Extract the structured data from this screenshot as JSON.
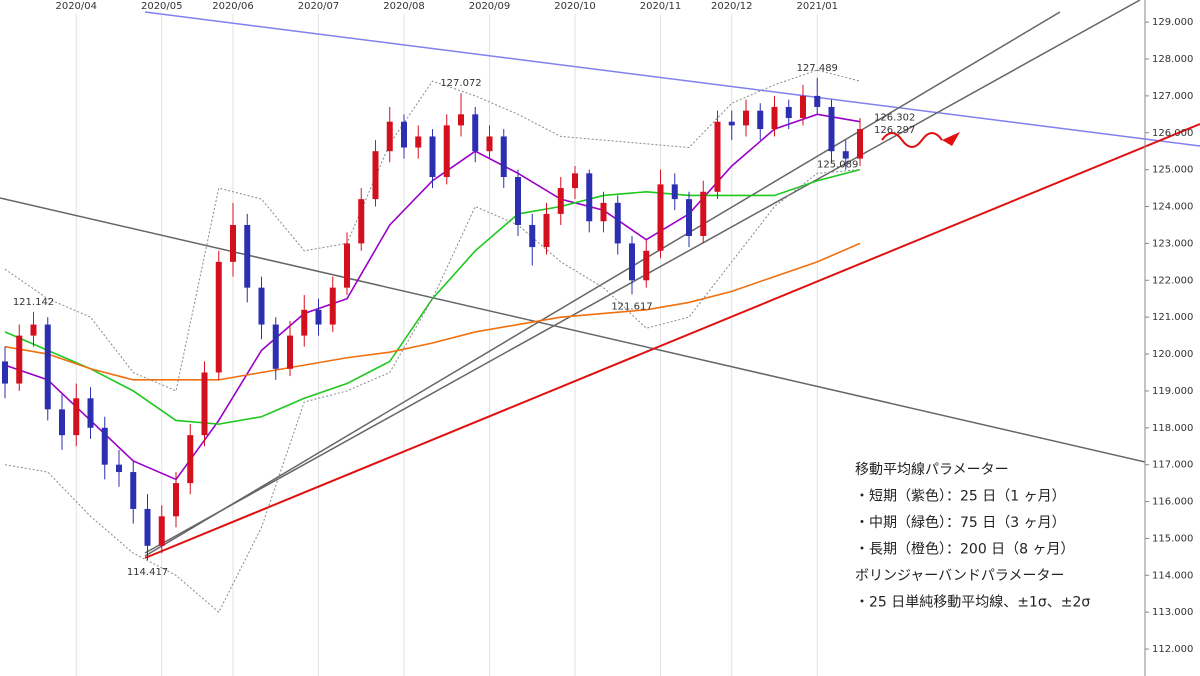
{
  "chart_data": {
    "type": "candlestick",
    "categories": [
      null,
      null,
      null,
      null,
      null,
      "2020/04",
      null,
      null,
      null,
      null,
      null,
      "2020/05",
      null,
      null,
      null,
      null,
      "2020/06",
      null,
      null,
      null,
      null,
      null,
      "2020/07",
      null,
      null,
      null,
      null,
      null,
      "2020/08",
      null,
      null,
      null,
      null,
      null,
      "2020/09",
      null,
      null,
      null,
      null,
      null,
      "2020/10",
      null,
      null,
      null,
      null,
      null,
      "2020/11",
      null,
      null,
      null,
      null,
      "2020/12",
      null,
      null,
      null,
      null,
      null,
      "2021/01",
      null,
      null,
      null
    ],
    "open": [
      119.8,
      119.2,
      120.5,
      120.8,
      118.5,
      117.8,
      118.8,
      118.0,
      117.0,
      116.8,
      115.8,
      114.8,
      115.6,
      116.5,
      117.8,
      119.5,
      122.5,
      123.5,
      121.8,
      120.8,
      119.6,
      120.5,
      121.2,
      120.8,
      121.8,
      123.0,
      124.2,
      125.5,
      126.3,
      125.6,
      125.9,
      124.8,
      126.2,
      126.5,
      125.5,
      125.9,
      124.8,
      123.5,
      122.9,
      123.8,
      124.5,
      124.9,
      123.6,
      124.1,
      123.0,
      122.0,
      122.8,
      124.6,
      124.2,
      123.2,
      124.4,
      126.3,
      126.2,
      126.6,
      126.1,
      126.7,
      126.4,
      127.0,
      126.7,
      125.5,
      125.3
    ],
    "high": [
      120.2,
      120.8,
      121.142,
      121.0,
      118.9,
      119.2,
      119.1,
      118.3,
      117.4,
      117.1,
      116.2,
      115.9,
      116.8,
      118.1,
      119.8,
      122.8,
      124.1,
      123.8,
      122.1,
      121.0,
      120.9,
      121.6,
      121.5,
      122.1,
      123.3,
      124.5,
      125.8,
      126.7,
      126.5,
      126.2,
      126.1,
      126.5,
      127.072,
      126.7,
      126.2,
      126.1,
      125.0,
      123.8,
      124.1,
      124.8,
      125.1,
      125.0,
      124.4,
      124.3,
      123.2,
      123.1,
      125.0,
      124.9,
      124.4,
      124.7,
      126.6,
      126.6,
      126.9,
      126.8,
      127.0,
      126.9,
      127.3,
      127.489,
      126.9,
      125.8,
      126.4
    ],
    "low": [
      118.8,
      119.0,
      120.2,
      118.2,
      117.4,
      117.5,
      117.7,
      116.6,
      116.4,
      115.4,
      114.417,
      114.6,
      115.3,
      116.2,
      117.5,
      119.3,
      122.1,
      121.4,
      120.4,
      119.3,
      119.4,
      120.2,
      120.5,
      120.6,
      121.6,
      122.8,
      124.0,
      125.2,
      125.3,
      125.3,
      124.5,
      124.6,
      125.9,
      125.2,
      125.3,
      124.5,
      123.2,
      122.4,
      122.7,
      123.5,
      124.2,
      123.3,
      123.3,
      122.7,
      121.617,
      121.8,
      122.6,
      123.9,
      122.9,
      123.0,
      124.2,
      125.8,
      125.9,
      125.8,
      125.9,
      126.1,
      126.2,
      126.5,
      125.2,
      125.0,
      125.1
    ],
    "close": [
      119.2,
      120.5,
      120.8,
      118.5,
      117.8,
      118.8,
      118.0,
      117.0,
      116.8,
      115.8,
      114.8,
      115.6,
      116.5,
      117.8,
      119.5,
      122.5,
      123.5,
      121.8,
      120.8,
      119.6,
      120.5,
      121.2,
      120.8,
      121.8,
      123.0,
      124.2,
      125.5,
      126.3,
      125.6,
      125.9,
      124.8,
      126.2,
      126.5,
      125.5,
      125.9,
      124.8,
      123.5,
      122.9,
      123.8,
      124.5,
      124.9,
      123.6,
      124.1,
      123.0,
      122.0,
      122.8,
      124.6,
      124.2,
      123.2,
      124.4,
      126.3,
      126.2,
      126.6,
      126.1,
      126.7,
      126.4,
      127.0,
      126.7,
      125.5,
      125.3,
      126.1
    ],
    "up_color": "#d40f1e",
    "down_color": "#2b2fb0",
    "overlay_x": [
      0,
      3,
      6,
      9,
      12,
      15,
      18,
      21,
      24,
      27,
      30,
      33,
      36,
      39,
      42,
      45,
      48,
      51,
      54,
      57,
      60
    ],
    "overlays": [
      {
        "color": "#9a00c8",
        "dashed": false,
        "values": [
          119.7,
          119.3,
          118.2,
          117.1,
          116.6,
          118.2,
          120.1,
          121.1,
          121.5,
          123.5,
          124.7,
          125.5,
          124.9,
          124.2,
          123.9,
          123.1,
          123.8,
          125.1,
          126.1,
          126.5,
          126.3
        ]
      },
      {
        "color": "#1ec81e",
        "dashed": false,
        "values": [
          120.6,
          120.1,
          119.6,
          119.0,
          118.2,
          118.1,
          118.3,
          118.8,
          119.2,
          119.8,
          121.5,
          122.8,
          123.8,
          124.0,
          124.3,
          124.4,
          124.3,
          124.3,
          124.3,
          124.7,
          125.0
        ]
      },
      {
        "color": "#f07010",
        "dashed": false,
        "values": [
          120.2,
          120.0,
          119.6,
          119.3,
          119.3,
          119.3,
          119.5,
          119.7,
          119.9,
          120.05,
          120.3,
          120.6,
          120.8,
          121.0,
          121.1,
          121.2,
          121.4,
          121.7,
          122.1,
          122.5,
          123.0
        ]
      },
      {
        "color": "#888888",
        "dashed": true,
        "values": [
          122.3,
          121.5,
          121.0,
          119.5,
          119.0,
          124.5,
          124.2,
          122.8,
          123.0,
          125.7,
          127.4,
          127.0,
          126.5,
          125.9,
          125.8,
          125.7,
          125.6,
          126.8,
          127.3,
          127.7,
          127.4
        ]
      },
      {
        "color": "#888888",
        "dashed": true,
        "values": [
          117.0,
          116.8,
          115.6,
          114.6,
          114.0,
          113.0,
          115.3,
          118.7,
          119.0,
          119.5,
          121.5,
          124.0,
          123.5,
          122.5,
          121.8,
          120.7,
          121.0,
          122.5,
          124.0,
          124.9,
          125.0
        ]
      }
    ],
    "annotations": [
      {
        "text": "121.142",
        "at": 2,
        "value": 121.142,
        "color": "#f07010"
      },
      {
        "text": "114.417",
        "at": 10,
        "value": 114.417,
        "color": "#1aa81a"
      },
      {
        "text": "127.072",
        "at": 32,
        "value": 127.072,
        "color": "#f07010"
      },
      {
        "text": "121.617",
        "at": 44,
        "value": 121.617,
        "color": "#1aa81a"
      },
      {
        "text": "127.489",
        "at": 57,
        "value": 127.489,
        "color": "#f07010"
      },
      {
        "text": "126.302",
        "at": 60,
        "value": 126.302,
        "color": "#c0408a"
      },
      {
        "text": "126.297",
        "at": 60,
        "value": 126.297,
        "color": "#10a8d0"
      },
      {
        "text": "125.089",
        "at": 56,
        "value": 125.089,
        "color": "#1aa81a"
      }
    ],
    "notes": [
      "移動平均線パラメーター",
      "・短期（紫色）：25 日（1 ヶ月）",
      "・中期（緑色）：75 日（3 ヶ月）",
      "・長期（橙色）：200 日（8 ヶ月）",
      "ボリンジャーバンドパラメーター",
      "・25 日単純移動平均線、±1σ、±2σ"
    ],
    "ylim": [
      111.27,
      129.6
    ],
    "yticks": [
      {
        "value": 112,
        "label": "112.000"
      },
      {
        "value": 113,
        "label": "113.000"
      },
      {
        "value": 114,
        "label": "114.000"
      },
      {
        "value": 115,
        "label": "115.000"
      },
      {
        "value": 116,
        "label": "116.000"
      },
      {
        "value": 117,
        "label": "117.000"
      },
      {
        "value": 118,
        "label": "118.000"
      },
      {
        "value": 119,
        "label": "119.000"
      },
      {
        "value": 120,
        "label": "120.000"
      },
      {
        "value": 121,
        "label": "121.000"
      },
      {
        "value": 122,
        "label": "122.000"
      },
      {
        "value": 123,
        "label": "123.000"
      },
      {
        "value": 124,
        "label": "124.000"
      },
      {
        "value": 125,
        "label": "125.000"
      },
      {
        "value": 126,
        "label": "126.000"
      },
      {
        "value": 127,
        "label": "127.000"
      },
      {
        "value": 128,
        "label": "128.000"
      },
      {
        "value": 129,
        "label": "129.000"
      }
    ]
  }
}
